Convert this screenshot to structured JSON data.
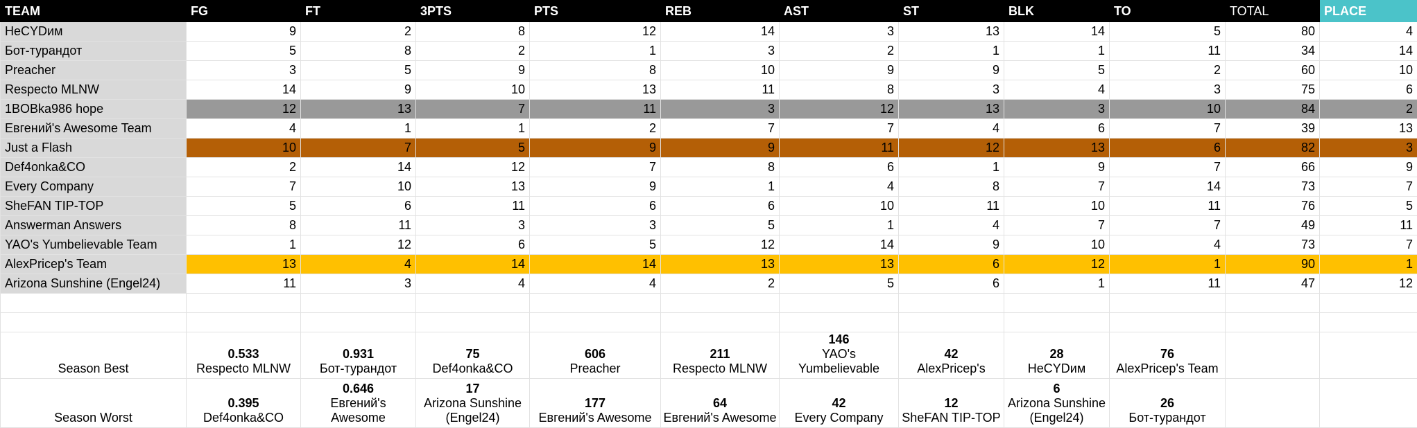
{
  "header": {
    "team": "TEAM",
    "fg": "FG",
    "ft": "FT",
    "threepts": "3PTS",
    "pts": "PTS",
    "reb": "REB",
    "ast": "AST",
    "st": "ST",
    "blk": "BLK",
    "to": "TO",
    "total": "TOTAL",
    "place": "PLACE"
  },
  "colors": {
    "header_bg": "#000000",
    "place_header_bg": "#4bc3c9",
    "team_col_bg": "#d9d9d9",
    "highlight_gray": "#999999",
    "highlight_orange": "#b45f06",
    "highlight_gold": "#ffc000"
  },
  "rows": [
    {
      "team": "НеCYDим",
      "fg": "9",
      "ft": "2",
      "threepts": "8",
      "pts": "12",
      "reb": "14",
      "ast": "3",
      "st": "13",
      "blk": "14",
      "to": "5",
      "total": "80",
      "place": "4"
    },
    {
      "team": "Бот-турандот",
      "fg": "5",
      "ft": "8",
      "threepts": "2",
      "pts": "1",
      "reb": "3",
      "ast": "2",
      "st": "1",
      "blk": "1",
      "to": "11",
      "total": "34",
      "place": "14"
    },
    {
      "team": "Preacher",
      "fg": "3",
      "ft": "5",
      "threepts": "9",
      "pts": "8",
      "reb": "10",
      "ast": "9",
      "st": "9",
      "blk": "5",
      "to": "2",
      "total": "60",
      "place": "10"
    },
    {
      "team": "Respecto MLNW",
      "fg": "14",
      "ft": "9",
      "threepts": "10",
      "pts": "13",
      "reb": "11",
      "ast": "8",
      "st": "3",
      "blk": "4",
      "to": "3",
      "total": "75",
      "place": "6"
    },
    {
      "team": "1BOBka986 hope",
      "fg": "12",
      "ft": "13",
      "threepts": "7",
      "pts": "11",
      "reb": "3",
      "ast": "12",
      "st": "13",
      "blk": "3",
      "to": "10",
      "total": "84",
      "place": "2"
    },
    {
      "team": "Евгений's Awesome Team",
      "fg": "4",
      "ft": "1",
      "threepts": "1",
      "pts": "2",
      "reb": "7",
      "ast": "7",
      "st": "4",
      "blk": "6",
      "to": "7",
      "total": "39",
      "place": "13"
    },
    {
      "team": "Just a Flash",
      "fg": "10",
      "ft": "7",
      "threepts": "5",
      "pts": "9",
      "reb": "9",
      "ast": "11",
      "st": "12",
      "blk": "13",
      "to": "6",
      "total": "82",
      "place": "3"
    },
    {
      "team": "Def4onka&CO",
      "fg": "2",
      "ft": "14",
      "threepts": "12",
      "pts": "7",
      "reb": "8",
      "ast": "6",
      "st": "1",
      "blk": "9",
      "to": "7",
      "total": "66",
      "place": "9"
    },
    {
      "team": "Every Company",
      "fg": "7",
      "ft": "10",
      "threepts": "13",
      "pts": "9",
      "reb": "1",
      "ast": "4",
      "st": "8",
      "blk": "7",
      "to": "14",
      "total": "73",
      "place": "7"
    },
    {
      "team": "SheFAN TIP-TOP",
      "fg": "5",
      "ft": "6",
      "threepts": "11",
      "pts": "6",
      "reb": "6",
      "ast": "10",
      "st": "11",
      "blk": "10",
      "to": "11",
      "total": "76",
      "place": "5"
    },
    {
      "team": "Answerman Answers",
      "fg": "8",
      "ft": "11",
      "threepts": "3",
      "pts": "3",
      "reb": "5",
      "ast": "1",
      "st": "4",
      "blk": "7",
      "to": "7",
      "total": "49",
      "place": "11"
    },
    {
      "team": "YAO's Yumbelievable Team",
      "fg": "1",
      "ft": "12",
      "threepts": "6",
      "pts": "5",
      "reb": "12",
      "ast": "14",
      "st": "9",
      "blk": "10",
      "to": "4",
      "total": "73",
      "place": "7"
    },
    {
      "team": "AlexPricep's Team",
      "fg": "13",
      "ft": "4",
      "threepts": "14",
      "pts": "14",
      "reb": "13",
      "ast": "13",
      "st": "6",
      "blk": "12",
      "to": "1",
      "total": "90",
      "place": "1"
    },
    {
      "team": "Arizona Sunshine (Engel24)",
      "fg": "11",
      "ft": "3",
      "threepts": "4",
      "pts": "4",
      "reb": "2",
      "ast": "5",
      "st": "6",
      "blk": "1",
      "to": "11",
      "total": "47",
      "place": "12"
    }
  ],
  "season_best": {
    "label": "Season Best",
    "fg": {
      "value": "0.533",
      "team": "Respecto MLNW"
    },
    "ft": {
      "value": "0.931",
      "team": "Бот-турандот"
    },
    "threepts": {
      "value": "75",
      "team": "Def4onka&CO"
    },
    "pts": {
      "value": "606",
      "team": "Preacher"
    },
    "reb": {
      "value": "211",
      "team": "Respecto MLNW"
    },
    "ast": {
      "value": "146",
      "team": "YAO's Yumbelievable"
    },
    "st": {
      "value": "42",
      "team": "AlexPricep's"
    },
    "blk": {
      "value": "28",
      "team": "НеCYDим"
    },
    "to": {
      "value": "76",
      "team": "AlexPricep's Team"
    }
  },
  "season_worst": {
    "label": "Season Worst",
    "fg": {
      "value": "0.395",
      "team": "Def4onka&CO"
    },
    "ft": {
      "value": "0.646",
      "team": "Евгений's Awesome"
    },
    "threepts": {
      "value": "17",
      "team": "Arizona Sunshine (Engel24)"
    },
    "pts": {
      "value": "177",
      "team": "Евгений's Awesome"
    },
    "reb": {
      "value": "64",
      "team": "Евгений's Awesome"
    },
    "ast": {
      "value": "42",
      "team": "Every Company"
    },
    "st": {
      "value": "12",
      "team": "SheFAN TIP-TOP"
    },
    "blk": {
      "value": "6",
      "team": "Arizona Sunshine (Engel24)"
    },
    "to": {
      "value": "26",
      "team": "Бот-турандот"
    }
  }
}
